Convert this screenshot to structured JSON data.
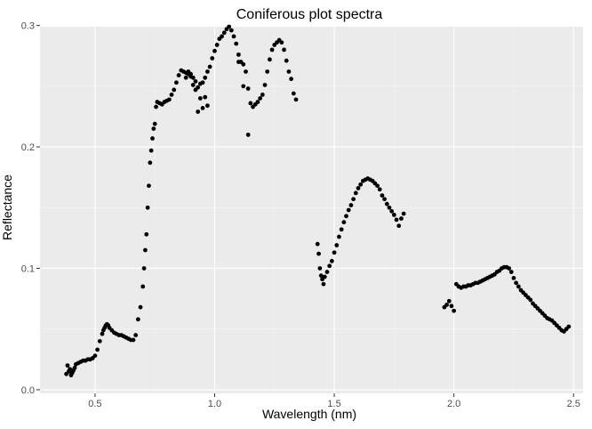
{
  "chart_data": {
    "type": "scatter",
    "title": "Coniferous plot spectra",
    "xlabel": "Wavelength (nm)",
    "ylabel": "Reflectance",
    "xlim": [
      0.27,
      2.54
    ],
    "ylim": [
      -0.003,
      0.299
    ],
    "x_ticks": [
      0.5,
      1.0,
      1.5,
      2.0,
      2.5
    ],
    "x_tick_labels": [
      "0.5",
      "1.0",
      "1.5",
      "2.0",
      "2.5"
    ],
    "y_ticks": [
      0.0,
      0.1,
      0.2,
      0.3
    ],
    "y_tick_labels": [
      "0.0",
      "0.1",
      "0.2",
      "0.3"
    ],
    "grid": true,
    "legend": "none",
    "point_color": "#000000",
    "panel_color": "#ebebeb",
    "x": [
      0.38,
      0.385,
      0.39,
      0.395,
      0.4,
      0.405,
      0.41,
      0.415,
      0.42,
      0.43,
      0.44,
      0.45,
      0.46,
      0.47,
      0.48,
      0.49,
      0.5,
      0.51,
      0.52,
      0.53,
      0.535,
      0.54,
      0.545,
      0.55,
      0.555,
      0.56,
      0.57,
      0.58,
      0.59,
      0.6,
      0.61,
      0.62,
      0.63,
      0.64,
      0.65,
      0.66,
      0.67,
      0.68,
      0.69,
      0.7,
      0.705,
      0.71,
      0.715,
      0.72,
      0.725,
      0.73,
      0.735,
      0.74,
      0.745,
      0.75,
      0.755,
      0.76,
      0.77,
      0.78,
      0.79,
      0.8,
      0.81,
      0.82,
      0.83,
      0.84,
      0.85,
      0.86,
      0.87,
      0.88,
      0.89,
      0.9,
      0.91,
      0.92,
      0.93,
      0.94,
      0.95,
      0.96,
      0.97,
      0.98,
      0.99,
      1.0,
      1.01,
      1.02,
      1.03,
      1.04,
      1.05,
      1.06,
      1.07,
      1.08,
      1.09,
      1.1,
      1.11,
      1.12,
      1.13,
      1.14,
      1.15,
      1.16,
      1.17,
      1.18,
      1.19,
      1.2,
      1.21,
      1.22,
      1.23,
      1.24,
      1.25,
      1.26,
      1.27,
      1.28,
      1.29,
      1.3,
      1.31,
      1.32,
      1.33,
      1.34,
      0.88,
      0.89,
      0.9,
      0.91,
      0.92,
      0.93,
      0.94,
      0.95,
      0.96,
      0.97,
      1.1,
      1.12,
      1.14,
      1.43,
      1.435,
      1.44,
      1.445,
      1.45,
      1.455,
      1.46,
      1.47,
      1.48,
      1.49,
      1.5,
      1.51,
      1.52,
      1.53,
      1.54,
      1.55,
      1.56,
      1.57,
      1.58,
      1.59,
      1.6,
      1.61,
      1.62,
      1.63,
      1.64,
      1.65,
      1.66,
      1.67,
      1.68,
      1.69,
      1.7,
      1.71,
      1.72,
      1.73,
      1.74,
      1.75,
      1.76,
      1.77,
      1.78,
      1.79,
      1.96,
      1.97,
      1.98,
      1.99,
      2.0,
      2.01,
      2.02,
      2.03,
      2.04,
      2.05,
      2.06,
      2.07,
      2.08,
      2.09,
      2.1,
      2.11,
      2.12,
      2.13,
      2.14,
      2.15,
      2.16,
      2.17,
      2.18,
      2.19,
      2.2,
      2.21,
      2.22,
      2.23,
      2.24,
      2.25,
      2.26,
      2.27,
      2.28,
      2.29,
      2.3,
      2.31,
      2.32,
      2.33,
      2.34,
      2.35,
      2.36,
      2.37,
      2.38,
      2.39,
      2.4,
      2.41,
      2.42,
      2.43,
      2.44,
      2.45,
      2.46,
      2.47,
      2.48
    ],
    "y": [
      0.013,
      0.02,
      0.015,
      0.017,
      0.012,
      0.014,
      0.016,
      0.018,
      0.021,
      0.022,
      0.023,
      0.024,
      0.024,
      0.025,
      0.025,
      0.026,
      0.028,
      0.033,
      0.04,
      0.046,
      0.049,
      0.051,
      0.053,
      0.054,
      0.053,
      0.051,
      0.049,
      0.047,
      0.046,
      0.045,
      0.045,
      0.044,
      0.043,
      0.042,
      0.041,
      0.041,
      0.045,
      0.058,
      0.068,
      0.085,
      0.1,
      0.115,
      0.128,
      0.15,
      0.168,
      0.187,
      0.197,
      0.207,
      0.215,
      0.219,
      0.233,
      0.237,
      0.236,
      0.235,
      0.237,
      0.238,
      0.239,
      0.243,
      0.247,
      0.253,
      0.259,
      0.263,
      0.262,
      0.261,
      0.26,
      0.26,
      0.257,
      0.254,
      0.249,
      0.252,
      0.253,
      0.257,
      0.262,
      0.266,
      0.273,
      0.279,
      0.284,
      0.289,
      0.291,
      0.294,
      0.297,
      0.299,
      0.296,
      0.291,
      0.285,
      0.276,
      0.27,
      0.268,
      0.262,
      0.248,
      0.236,
      0.233,
      0.235,
      0.237,
      0.24,
      0.243,
      0.251,
      0.262,
      0.272,
      0.28,
      0.284,
      0.286,
      0.288,
      0.286,
      0.28,
      0.271,
      0.262,
      0.256,
      0.244,
      0.239,
      0.257,
      0.262,
      0.258,
      0.251,
      0.247,
      0.229,
      0.24,
      0.232,
      0.241,
      0.234,
      0.27,
      0.25,
      0.21,
      0.12,
      0.112,
      0.1,
      0.094,
      0.091,
      0.087,
      0.093,
      0.097,
      0.102,
      0.106,
      0.113,
      0.119,
      0.126,
      0.132,
      0.138,
      0.143,
      0.148,
      0.152,
      0.157,
      0.162,
      0.166,
      0.169,
      0.172,
      0.173,
      0.174,
      0.173,
      0.172,
      0.17,
      0.168,
      0.165,
      0.16,
      0.157,
      0.153,
      0.15,
      0.147,
      0.144,
      0.14,
      0.135,
      0.141,
      0.145,
      0.068,
      0.07,
      0.073,
      0.069,
      0.065,
      0.087,
      0.085,
      0.084,
      0.085,
      0.085,
      0.086,
      0.086,
      0.087,
      0.088,
      0.088,
      0.089,
      0.09,
      0.091,
      0.092,
      0.093,
      0.094,
      0.095,
      0.097,
      0.098,
      0.1,
      0.101,
      0.101,
      0.1,
      0.097,
      0.092,
      0.088,
      0.085,
      0.082,
      0.08,
      0.078,
      0.076,
      0.074,
      0.071,
      0.069,
      0.067,
      0.065,
      0.063,
      0.061,
      0.059,
      0.058,
      0.057,
      0.055,
      0.053,
      0.051,
      0.049,
      0.048,
      0.05,
      0.052
    ]
  }
}
